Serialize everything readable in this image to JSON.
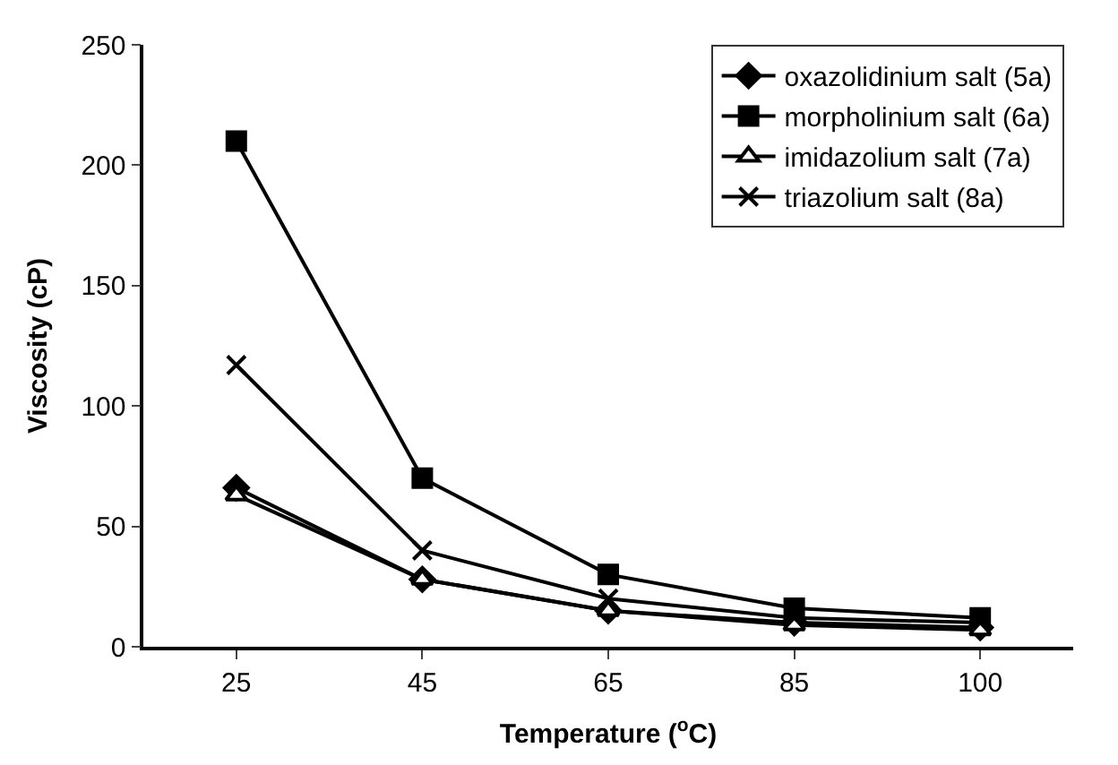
{
  "chart_data": {
    "type": "line",
    "xlabel": "Temperature ($^{o}$C)",
    "ylabel": "Viscosity (cP)",
    "categories": [
      "25",
      "45",
      "65",
      "85",
      "100"
    ],
    "ylim": [
      0,
      250
    ],
    "yticks": [
      0,
      50,
      100,
      150,
      200,
      250
    ],
    "legend": "top right",
    "line_style": "solid",
    "series": [
      {
        "name": "oxazolidinium salt (5a)",
        "color": "#000000",
        "marker": "diamond",
        "values": [
          66,
          28,
          15,
          10,
          8
        ]
      },
      {
        "name": "morpholinium salt (6a)",
        "color": "#000000",
        "marker": "square",
        "values": [
          210,
          70,
          30,
          16,
          12
        ]
      },
      {
        "name": "imidazolium salt (7a)",
        "color": "#000000",
        "marker": "triangle",
        "values": [
          63,
          28,
          15,
          9,
          7
        ]
      },
      {
        "name": "triazolium salt (8a)",
        "color": "#000000",
        "marker": "cross",
        "values": [
          117,
          40,
          20,
          12,
          10
        ]
      }
    ]
  }
}
